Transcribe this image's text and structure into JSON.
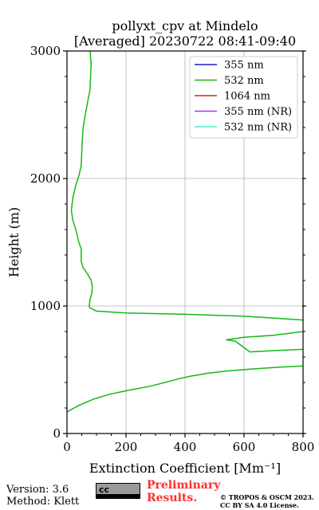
{
  "chart_data": {
    "type": "line",
    "title_line1": "pollyxt_cpv at Mindelo",
    "title_line2": "[Averaged] 20230722 08:41-09:40",
    "xlabel": "Extinction Coefficient [Mm⁻¹]",
    "ylabel": "Height (m)",
    "xlim": [
      0,
      800
    ],
    "ylim": [
      0,
      3000
    ],
    "xticks": [
      0,
      200,
      400,
      600,
      800
    ],
    "yticks": [
      0,
      1000,
      2000,
      3000
    ],
    "grid": true,
    "legend_position": "top-right",
    "series": [
      {
        "name": "355 nm",
        "color": "#1f1fd6",
        "points": []
      },
      {
        "name": "532 nm",
        "color": "#14b814",
        "points": [
          [
            0,
            170
          ],
          [
            40,
            220
          ],
          [
            90,
            270
          ],
          [
            140,
            305
          ],
          [
            200,
            335
          ],
          [
            280,
            370
          ],
          [
            340,
            405
          ],
          [
            380,
            430
          ],
          [
            420,
            450
          ],
          [
            470,
            470
          ],
          [
            540,
            490
          ],
          [
            620,
            505
          ],
          [
            720,
            520
          ],
          [
            800,
            530
          ]
        ]
      },
      {
        "name": "532 nm",
        "color": "#14b814",
        "points": [
          [
            800,
            660
          ],
          [
            700,
            650
          ],
          [
            620,
            640
          ],
          [
            570,
            725
          ],
          [
            540,
            735
          ],
          [
            600,
            755
          ],
          [
            700,
            770
          ],
          [
            800,
            800
          ]
        ]
      },
      {
        "name": "532 nm",
        "color": "#14b814",
        "points": [
          [
            800,
            890
          ],
          [
            600,
            920
          ],
          [
            400,
            935
          ],
          [
            200,
            945
          ],
          [
            100,
            960
          ],
          [
            78,
            985
          ],
          [
            75,
            1000
          ],
          [
            78,
            1050
          ],
          [
            84,
            1100
          ],
          [
            86,
            1150
          ],
          [
            82,
            1200
          ],
          [
            70,
            1250
          ],
          [
            55,
            1300
          ],
          [
            48,
            1350
          ],
          [
            48,
            1450
          ],
          [
            40,
            1500
          ],
          [
            30,
            1600
          ],
          [
            20,
            1670
          ],
          [
            15,
            1750
          ],
          [
            20,
            1850
          ],
          [
            30,
            1950
          ],
          [
            40,
            2020
          ],
          [
            48,
            2100
          ],
          [
            50,
            2200
          ],
          [
            52,
            2300
          ],
          [
            55,
            2400
          ],
          [
            62,
            2500
          ],
          [
            70,
            2600
          ],
          [
            78,
            2700
          ],
          [
            80,
            2800
          ],
          [
            82,
            2900
          ],
          [
            78,
            3000
          ]
        ]
      },
      {
        "name": "1064 nm",
        "color": "#d82020",
        "points": []
      },
      {
        "name": "355 nm (NR)",
        "color": "#a33cd9",
        "points": []
      },
      {
        "name": "532 nm (NR)",
        "color": "#4de8d0",
        "points": []
      }
    ],
    "legend": [
      {
        "label": "355 nm",
        "color": "#1f1fd6"
      },
      {
        "label": "532 nm",
        "color": "#14b814"
      },
      {
        "label": "1064 nm",
        "color": "#d82020"
      },
      {
        "label": "355 nm (NR)",
        "color": "#a33cd9"
      },
      {
        "label": "532 nm (NR)",
        "color": "#4de8d0"
      }
    ]
  },
  "footer": {
    "version": "Version: 3.6",
    "method": "Method: Klett",
    "cc_badge": "cc",
    "preliminary_line1": "Preliminary",
    "preliminary_line2": "Results.",
    "copyright_line1": "© TROPOS & OSCM 2023.",
    "copyright_line2": "CC BY SA 4.0 License."
  }
}
